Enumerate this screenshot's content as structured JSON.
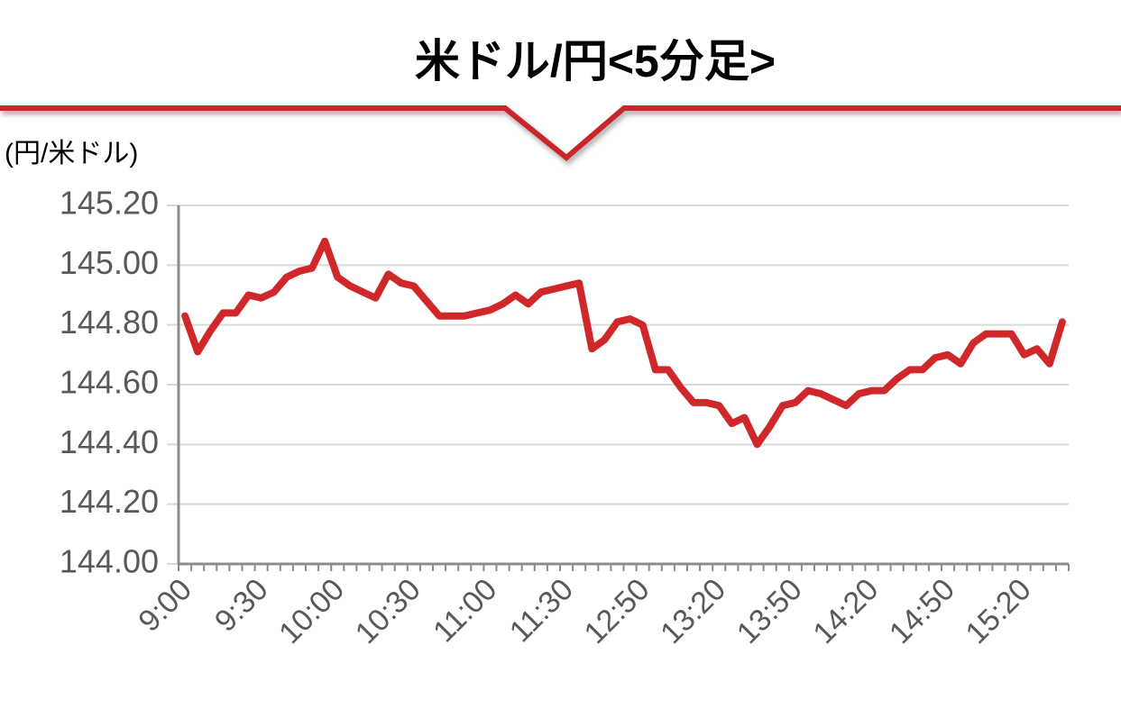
{
  "chart_data": {
    "type": "line",
    "title": "米ドル/円<5分足>",
    "y_label": "(円/米ドル)",
    "categories": [
      "9:00",
      null,
      null,
      null,
      null,
      null,
      "9:30",
      null,
      null,
      null,
      null,
      null,
      "10:00",
      null,
      null,
      null,
      null,
      null,
      "10:30",
      null,
      null,
      null,
      null,
      null,
      "11:00",
      null,
      null,
      null,
      null,
      null,
      "11:30",
      null,
      null,
      null,
      null,
      null,
      "12:50",
      null,
      null,
      null,
      null,
      null,
      "13:20",
      null,
      null,
      null,
      null,
      null,
      "13:50",
      null,
      null,
      null,
      null,
      null,
      "14:20",
      null,
      null,
      null,
      null,
      null,
      "14:50",
      null,
      null,
      null,
      null,
      null,
      "15:20",
      null,
      null,
      null
    ],
    "series": [
      {
        "name": "米ドル/円",
        "color": "#d0282a",
        "values": [
          144.83,
          144.71,
          144.78,
          144.84,
          144.84,
          144.9,
          144.89,
          144.91,
          144.96,
          144.98,
          144.99,
          145.08,
          144.96,
          144.93,
          144.91,
          144.89,
          144.97,
          144.94,
          144.93,
          144.88,
          144.83,
          144.83,
          144.83,
          144.84,
          144.85,
          144.87,
          144.9,
          144.87,
          144.91,
          144.92,
          144.93,
          144.94,
          144.72,
          144.75,
          144.81,
          144.82,
          144.8,
          144.65,
          144.65,
          144.59,
          144.54,
          144.54,
          144.53,
          144.47,
          144.49,
          144.4,
          144.46,
          144.53,
          144.54,
          144.58,
          144.57,
          144.55,
          144.53,
          144.57,
          144.58,
          144.58,
          144.62,
          144.65,
          144.65,
          144.69,
          144.7,
          144.67,
          144.74,
          144.77,
          144.77,
          144.77,
          144.7,
          144.72,
          144.67,
          144.81
        ]
      }
    ],
    "ylim": [
      144.0,
      145.2
    ],
    "yticks": [
      {
        "value": 144.0,
        "label": "144.00"
      },
      {
        "value": 144.2,
        "label": "144.20"
      },
      {
        "value": 144.4,
        "label": "144.40"
      },
      {
        "value": 144.6,
        "label": "144.60"
      },
      {
        "value": 144.8,
        "label": "144.80"
      },
      {
        "value": 145.0,
        "label": "145.00"
      },
      {
        "value": 145.2,
        "label": "145.20"
      }
    ],
    "grid": true
  }
}
